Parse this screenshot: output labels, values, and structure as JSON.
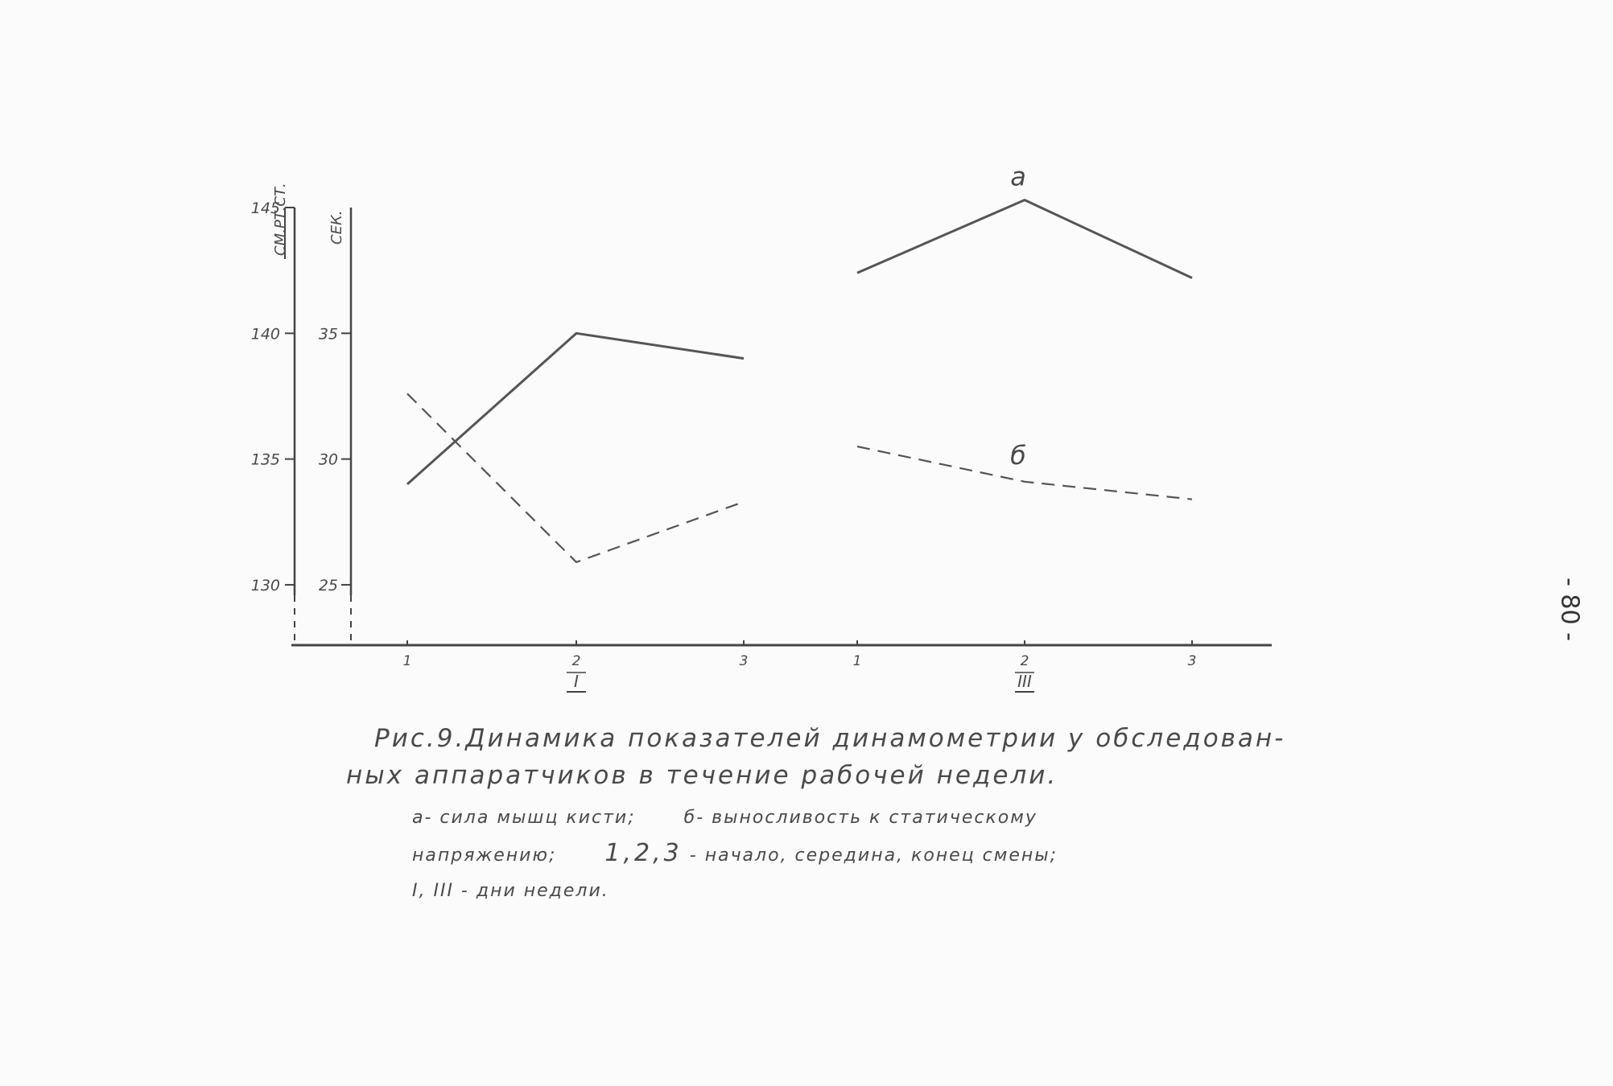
{
  "chart_data": {
    "type": "line",
    "categories": [
      "1",
      "2",
      "3",
      "1",
      "2",
      "3"
    ],
    "category_groups": [
      {
        "label": "I",
        "categories": [
          "1",
          "2",
          "3"
        ]
      },
      {
        "label": "III",
        "categories": [
          "1",
          "2",
          "3"
        ]
      }
    ],
    "axes": {
      "left_outer": {
        "label": "СМ.РТ.СТ.",
        "ticks": [
          "130",
          "135",
          "140",
          "145"
        ],
        "range": [
          127.6,
          145
        ]
      },
      "left_inner": {
        "label": "СЕК.",
        "ticks": [
          "25",
          "30",
          "35"
        ],
        "range": [
          22.6,
          40
        ]
      }
    },
    "series": [
      {
        "name": "а",
        "axis": "left_outer",
        "style": "solid",
        "values": [
          134,
          140,
          139,
          142.4,
          145.3,
          142.2
        ]
      },
      {
        "name": "б",
        "axis": "left_inner",
        "style": "dashed",
        "values": [
          32.6,
          25.9,
          28.3,
          30.5,
          29.1,
          28.4
        ]
      }
    ],
    "grid": false
  },
  "caption": {
    "title_line1": "Рис.9.Динамика показателей динамометрии у обследован-",
    "title_line2": "ных аппаратчиков в течение рабочей недели.",
    "legend_line1_a": "а- сила мышц кисти;",
    "legend_line1_b": "б- выносливость к статическому",
    "legend_line2_a": "напряжению;",
    "legend_line2_nums": "1,2,3",
    "legend_line2_b": "- начало, середина, конец смены;",
    "legend_line3": "I, III - дни недели."
  },
  "page_number": "- 80 -"
}
